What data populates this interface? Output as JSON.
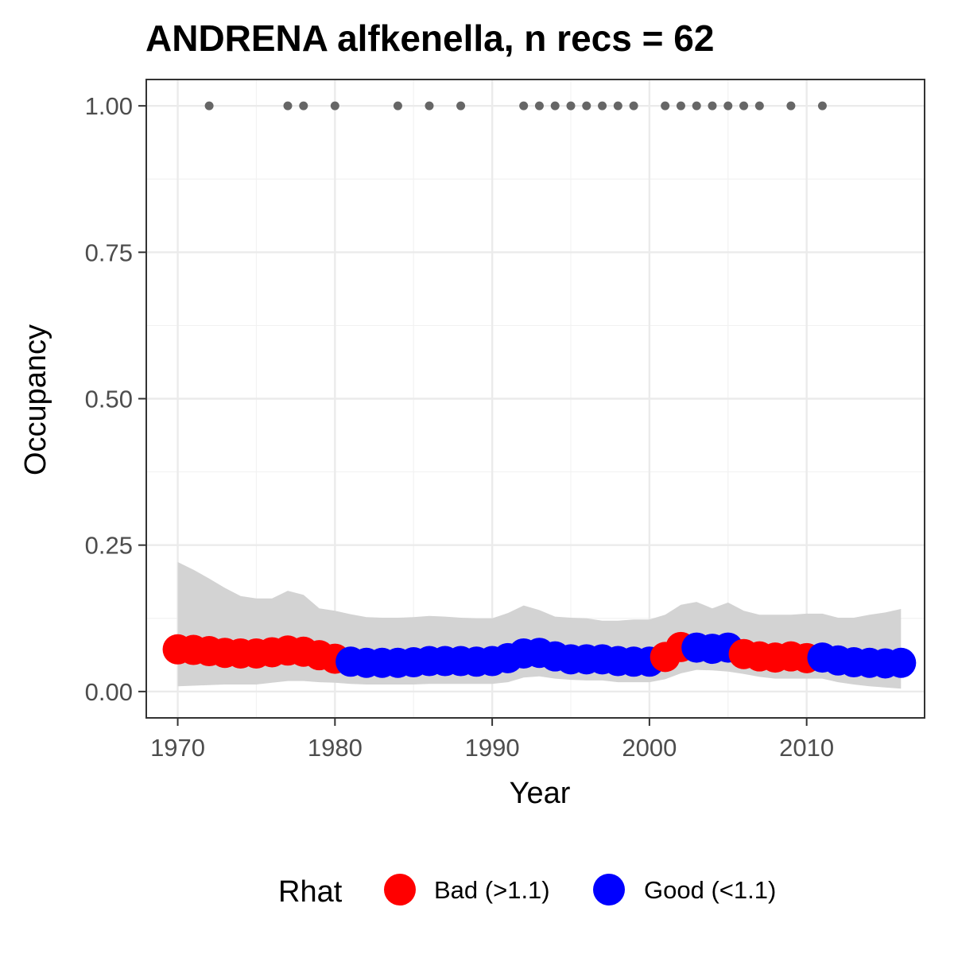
{
  "chart_data": {
    "type": "line",
    "title": "ANDRENA alfkenella, n recs = 62",
    "xlabel": "Year",
    "ylabel": "Occupancy",
    "xlim": [
      1968,
      2017.5
    ],
    "ylim": [
      -0.045,
      1.045
    ],
    "x_ticks": [
      1970,
      1980,
      1990,
      2000,
      2010
    ],
    "x_tick_labels": [
      "1970",
      "1980",
      "1990",
      "2000",
      "2010"
    ],
    "y_ticks": [
      0,
      0.25,
      0.5,
      0.75,
      1.0
    ],
    "y_tick_labels": [
      "0.00",
      "0.25",
      "0.50",
      "0.75",
      "1.00"
    ],
    "grid": true,
    "legend": {
      "title": "Rhat",
      "position": "bottom",
      "entries": [
        {
          "label": "Bad (>1.1)",
          "color": "#ff0000"
        },
        {
          "label": "Good (<1.1)",
          "color": "#0000ff"
        }
      ]
    },
    "colors": {
      "bad": "#ff0000",
      "good": "#0000ff",
      "ribbon": "#d3d3d3",
      "records": "#666666"
    },
    "record_years": [
      1972,
      1977,
      1978,
      1980,
      1984,
      1986,
      1988,
      1992,
      1993,
      1994,
      1995,
      1996,
      1997,
      1998,
      1999,
      2001,
      2002,
      2003,
      2004,
      2005,
      2006,
      2007,
      2009,
      2011
    ],
    "record_value": 1.0,
    "ribbon": {
      "x": [
        1970,
        1971,
        1972,
        1973,
        1974,
        1975,
        1976,
        1977,
        1978,
        1979,
        1980,
        1981,
        1982,
        1983,
        1984,
        1985,
        1986,
        1987,
        1988,
        1989,
        1990,
        1991,
        1992,
        1993,
        1994,
        1995,
        1996,
        1997,
        1998,
        1999,
        2000,
        2001,
        2002,
        2003,
        2004,
        2005,
        2006,
        2007,
        2008,
        2009,
        2010,
        2011,
        2012,
        2013,
        2014,
        2015,
        2016
      ],
      "upper": [
        0.221,
        0.208,
        0.193,
        0.177,
        0.163,
        0.159,
        0.159,
        0.172,
        0.165,
        0.142,
        0.138,
        0.132,
        0.127,
        0.126,
        0.126,
        0.127,
        0.129,
        0.128,
        0.126,
        0.125,
        0.125,
        0.134,
        0.147,
        0.139,
        0.128,
        0.126,
        0.125,
        0.121,
        0.121,
        0.123,
        0.123,
        0.131,
        0.148,
        0.153,
        0.142,
        0.152,
        0.138,
        0.131,
        0.131,
        0.131,
        0.133,
        0.133,
        0.126,
        0.126,
        0.131,
        0.135,
        0.141
      ],
      "lower": [
        0.009,
        0.01,
        0.011,
        0.012,
        0.012,
        0.012,
        0.015,
        0.018,
        0.018,
        0.016,
        0.015,
        0.013,
        0.012,
        0.012,
        0.012,
        0.012,
        0.013,
        0.013,
        0.013,
        0.013,
        0.013,
        0.016,
        0.024,
        0.026,
        0.022,
        0.02,
        0.019,
        0.019,
        0.016,
        0.016,
        0.016,
        0.021,
        0.031,
        0.037,
        0.036,
        0.034,
        0.03,
        0.025,
        0.022,
        0.022,
        0.022,
        0.022,
        0.016,
        0.012,
        0.009,
        0.007,
        0.005
      ]
    },
    "series": [
      {
        "x": [
          1970,
          1971,
          1972,
          1973,
          1974,
          1975,
          1976,
          1977,
          1978,
          1979,
          1980,
          1981,
          1982,
          1983,
          1984,
          1985,
          1986,
          1987,
          1988,
          1989,
          1990,
          1991,
          1992,
          1993,
          1994,
          1995,
          1996,
          1997,
          1998,
          1999,
          2000,
          2001,
          2002,
          2003,
          2004,
          2005,
          2006,
          2007,
          2008,
          2009,
          2010,
          2011,
          2012,
          2013,
          2014,
          2015,
          2016
        ],
        "values": [
          0.072,
          0.071,
          0.069,
          0.066,
          0.065,
          0.065,
          0.067,
          0.07,
          0.068,
          0.062,
          0.056,
          0.051,
          0.049,
          0.049,
          0.049,
          0.05,
          0.052,
          0.052,
          0.052,
          0.051,
          0.052,
          0.057,
          0.065,
          0.066,
          0.06,
          0.055,
          0.055,
          0.055,
          0.052,
          0.051,
          0.051,
          0.059,
          0.076,
          0.075,
          0.073,
          0.075,
          0.064,
          0.06,
          0.058,
          0.06,
          0.057,
          0.058,
          0.053,
          0.05,
          0.049,
          0.048,
          0.049
        ],
        "rhat": [
          "bad",
          "bad",
          "bad",
          "bad",
          "bad",
          "bad",
          "bad",
          "bad",
          "bad",
          "bad",
          "bad",
          "good",
          "good",
          "good",
          "good",
          "good",
          "good",
          "good",
          "good",
          "good",
          "good",
          "good",
          "good",
          "good",
          "good",
          "good",
          "good",
          "good",
          "good",
          "good",
          "good",
          "bad",
          "bad",
          "good",
          "good",
          "good",
          "bad",
          "bad",
          "bad",
          "bad",
          "bad",
          "good",
          "good",
          "good",
          "good",
          "good",
          "good"
        ]
      }
    ]
  }
}
